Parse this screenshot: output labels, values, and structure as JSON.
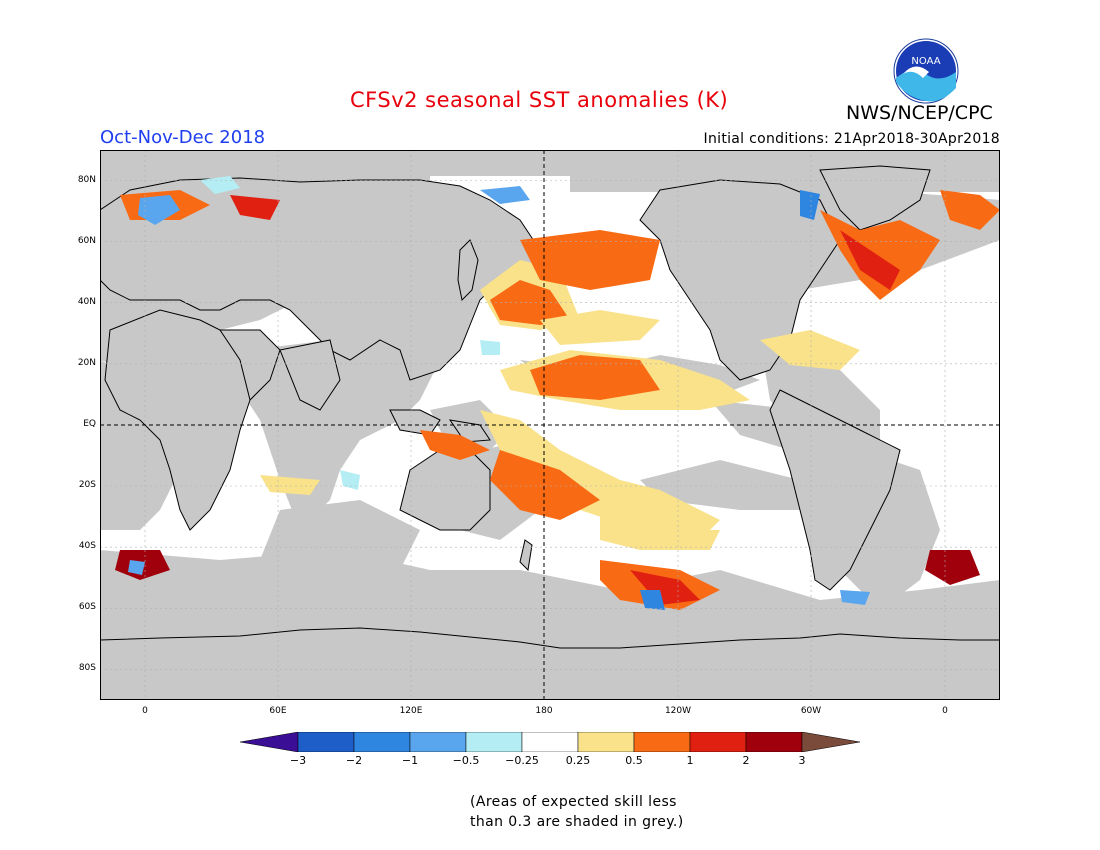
{
  "title": "CFSv2 seasonal SST anomalies (K)",
  "agency": "NWS/NCEP/CPC",
  "logo_text": "NOAA",
  "season": "Oct-Nov-Dec 2018",
  "initial_conditions": "Initial conditions: 21Apr2018-30Apr2018",
  "lat_labels": [
    "80N",
    "60N",
    "40N",
    "20N",
    "EQ",
    "20S",
    "40S",
    "60S",
    "80S"
  ],
  "lon_labels": [
    "0",
    "60E",
    "120E",
    "180",
    "120W",
    "60W",
    "0"
  ],
  "colorbar": {
    "labels": [
      "−3",
      "−2",
      "−1",
      "−0.5",
      "−0.25",
      "0.25",
      "0.5",
      "1",
      "2",
      "3"
    ],
    "colors": [
      "#3a0f96",
      "#1e5ec8",
      "#2f86e0",
      "#5aa6ee",
      "#b4eef4",
      "#ffffff",
      "#f9e28a",
      "#f96a14",
      "#e02010",
      "#a0000b",
      "#7a4a3a"
    ]
  },
  "note": {
    "line1": "(Areas of expected skill less",
    "line2": "than 0.3 are shaded in grey.)"
  },
  "colors": {
    "mask_grey": "#c8c8c8",
    "warm_light": "#f9e28a",
    "warm": "#f96a14",
    "warm_strong": "#e02010",
    "warm_max": "#a0000b",
    "cool_light": "#b4eef4",
    "cool": "#5aa6ee",
    "cool_strong": "#2f86e0"
  }
}
